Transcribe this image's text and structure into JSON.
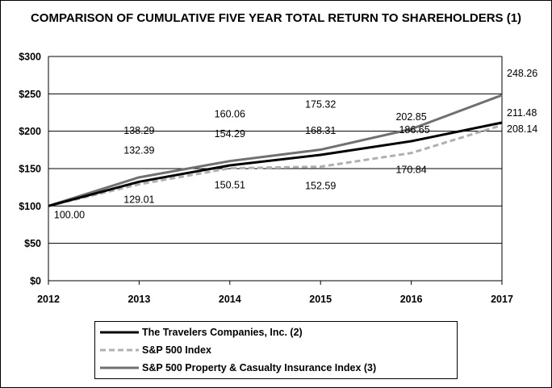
{
  "chart_data": {
    "type": "line",
    "title": "COMPARISON OF CUMULATIVE FIVE YEAR TOTAL RETURN TO SHAREHOLDERS (1)",
    "x": [
      "2012",
      "2013",
      "2014",
      "2015",
      "2016",
      "2017"
    ],
    "ylim": [
      0,
      300
    ],
    "yticks": [
      "$0",
      "$50",
      "$100",
      "$150",
      "$200",
      "$250",
      "$300"
    ],
    "grid": true,
    "legend_placement": "bottom",
    "start_label": "100.00",
    "series": [
      {
        "name": "The Travelers Companies, Inc. (2)",
        "values": [
          100.0,
          132.39,
          154.29,
          168.31,
          186.65,
          211.48
        ],
        "labels": [
          "",
          "132.39",
          "154.29",
          "168.31",
          "186.65",
          "211.48"
        ],
        "color": "#000000",
        "dash": "solid"
      },
      {
        "name": "S&P 500 Index",
        "values": [
          100.0,
          129.01,
          150.51,
          152.59,
          170.84,
          208.14
        ],
        "labels": [
          "",
          "129.01",
          "150.51",
          "152.59",
          "170.84",
          "208.14"
        ],
        "color": "#b0b0b0",
        "dash": "dashed"
      },
      {
        "name": "S&P 500 Property & Casualty Insurance Index (3)",
        "values": [
          100.0,
          138.29,
          160.06,
          175.32,
          202.85,
          248.26
        ],
        "labels": [
          "",
          "138.29",
          "160.06",
          "175.32",
          "202.85",
          "248.26"
        ],
        "color": "#707070",
        "dash": "solid"
      }
    ]
  }
}
